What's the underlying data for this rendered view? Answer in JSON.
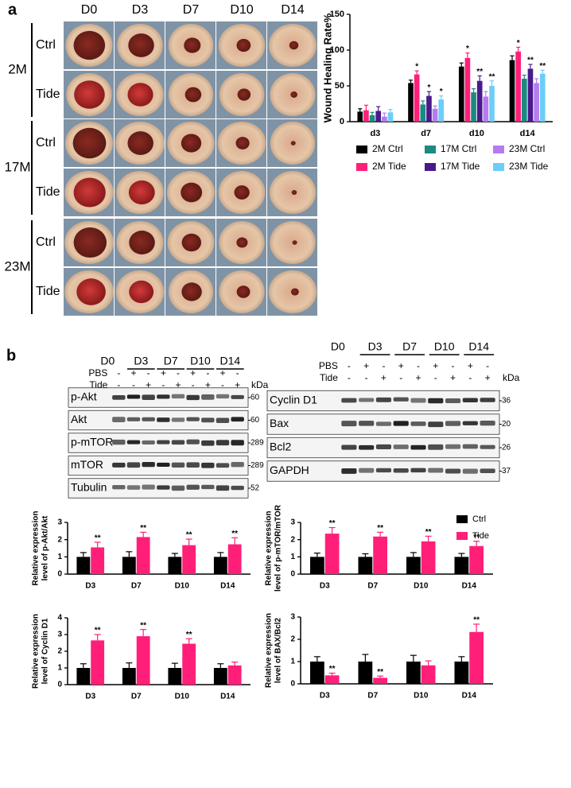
{
  "panel_a": {
    "label": "a",
    "columns": [
      "D0",
      "D3",
      "D7",
      "D10",
      "D14"
    ],
    "groups": [
      {
        "name": "2M",
        "rows": [
          "Ctrl",
          "Tide"
        ]
      },
      {
        "name": "17M",
        "rows": [
          "Ctrl",
          "Tide"
        ]
      },
      {
        "name": "23M",
        "rows": [
          "Ctrl",
          "Tide"
        ]
      }
    ]
  },
  "panel_b": {
    "label": "b",
    "blots": [
      {
        "columns": [
          "D0",
          "D3",
          "D7",
          "D10",
          "D14"
        ],
        "treatments": [
          {
            "name": "PBS",
            "signs": [
              "-",
              "+",
              "-",
              "+",
              "-",
              "+",
              "-",
              "+",
              "-"
            ]
          },
          {
            "name": "Tide",
            "signs": [
              "-",
              "-",
              "+",
              "-",
              "+",
              "-",
              "+",
              "-",
              "+"
            ]
          }
        ],
        "unit": "kDa",
        "proteins": [
          {
            "name": "p-Akt",
            "kda": "60"
          },
          {
            "name": "Akt",
            "kda": "60"
          },
          {
            "name": "p-mTOR",
            "kda": "289"
          },
          {
            "name": "mTOR",
            "kda": "289"
          },
          {
            "name": "Tubulin",
            "kda": "52"
          }
        ]
      },
      {
        "columns": [
          "D0",
          "D3",
          "D7",
          "D10",
          "D14"
        ],
        "treatments": [
          {
            "name": "PBS",
            "signs": [
              "-",
              "+",
              "-",
              "+",
              "-",
              "+",
              "-",
              "+",
              "-"
            ]
          },
          {
            "name": "Tide",
            "signs": [
              "-",
              "-",
              "+",
              "-",
              "+",
              "-",
              "+",
              "-",
              "+"
            ]
          }
        ],
        "unit": "kDa",
        "proteins": [
          {
            "name": "Cyclin D1",
            "kda": "36"
          },
          {
            "name": "Bax",
            "kda": "20"
          },
          {
            "name": "Bcl2",
            "kda": "26"
          },
          {
            "name": "GAPDH",
            "kda": "37"
          }
        ]
      }
    ]
  },
  "chart_data": [
    {
      "type": "bar",
      "y_label": [
        "Wound Healing Rate%"
      ],
      "categories": [
        "d3",
        "d7",
        "d10",
        "d14"
      ],
      "ylim": [
        0,
        150
      ],
      "yticks": [
        0,
        50,
        100,
        150
      ],
      "legend": "bottom",
      "series": [
        {
          "name": "2M Ctrl",
          "color": "#000000",
          "values": [
            14,
            54,
            77,
            86
          ],
          "errors": [
            4,
            4,
            5,
            6
          ]
        },
        {
          "name": "2M Tide",
          "color": "#ff1f78",
          "values": [
            16,
            66,
            89,
            98
          ],
          "errors": [
            7,
            5,
            7,
            6
          ],
          "annotations": [
            null,
            "*",
            "*",
            "*"
          ]
        },
        {
          "name": "17M Ctrl",
          "color": "#1b8a80",
          "values": [
            9,
            24,
            41,
            60
          ],
          "errors": [
            4,
            5,
            5,
            5
          ]
        },
        {
          "name": "17M Tide",
          "color": "#4a1a8c",
          "values": [
            15,
            36,
            57,
            74
          ],
          "errors": [
            6,
            6,
            7,
            6
          ],
          "annotations": [
            null,
            "*",
            "**",
            "**"
          ]
        },
        {
          "name": "23M Ctrl",
          "color": "#b57cf0",
          "values": [
            7,
            18,
            35,
            54
          ],
          "errors": [
            5,
            4,
            7,
            6
          ]
        },
        {
          "name": "23M Tide",
          "color": "#6ccdf8",
          "values": [
            13,
            31,
            50,
            67
          ],
          "errors": [
            4,
            5,
            7,
            5
          ],
          "annotations": [
            null,
            "*",
            "**",
            "**"
          ]
        }
      ]
    },
    {
      "type": "bar",
      "y_label": [
        "Relative expression",
        "level of p-Akt/Akt"
      ],
      "categories": [
        "D3",
        "D7",
        "D10",
        "D14"
      ],
      "ylim": [
        0,
        3
      ],
      "yticks": [
        0,
        1,
        2,
        3
      ],
      "series": [
        {
          "color": "#000000",
          "values": [
            1,
            1,
            1,
            1
          ],
          "errors": [
            0.25,
            0.3,
            0.2,
            0.25
          ]
        },
        {
          "color": "#ff1f78",
          "values": [
            1.55,
            2.15,
            1.68,
            1.73
          ],
          "errors": [
            0.3,
            0.28,
            0.35,
            0.38
          ],
          "annotations": [
            "**",
            "**",
            "**",
            "**"
          ]
        }
      ]
    },
    {
      "type": "bar",
      "y_label": [
        "Relative expression",
        "level of p-mTOR/mTOR"
      ],
      "categories": [
        "D3",
        "D7",
        "D10",
        "D14"
      ],
      "ylim": [
        0,
        3
      ],
      "yticks": [
        0,
        1,
        2,
        3
      ],
      "legend": "top-right",
      "series": [
        {
          "name": "Ctrl",
          "color": "#000000",
          "values": [
            1,
            1,
            1,
            1
          ],
          "errors": [
            0.22,
            0.18,
            0.25,
            0.2
          ]
        },
        {
          "name": "Tide",
          "color": "#ff1f78",
          "values": [
            2.35,
            2.18,
            1.9,
            1.63
          ],
          "errors": [
            0.35,
            0.25,
            0.3,
            0.28
          ],
          "annotations": [
            "**",
            "**",
            "**",
            "**"
          ]
        }
      ]
    },
    {
      "type": "bar",
      "y_label": [
        "Relative expression",
        "level of Cyclin D1"
      ],
      "categories": [
        "D3",
        "D7",
        "D10",
        "D14"
      ],
      "ylim": [
        0,
        4
      ],
      "yticks": [
        0,
        1,
        2,
        3,
        4
      ],
      "series": [
        {
          "color": "#000000",
          "values": [
            1,
            1,
            1,
            1
          ],
          "errors": [
            0.25,
            0.3,
            0.28,
            0.25
          ]
        },
        {
          "color": "#ff1f78",
          "values": [
            2.65,
            2.9,
            2.45,
            1.15
          ],
          "errors": [
            0.35,
            0.4,
            0.3,
            0.2
          ],
          "annotations": [
            "**",
            "**",
            "**",
            null
          ]
        }
      ]
    },
    {
      "type": "bar",
      "y_label": [
        "Relative expression",
        "level of BAX/Bcl2"
      ],
      "categories": [
        "D3",
        "D7",
        "D10",
        "D14"
      ],
      "ylim": [
        0,
        3
      ],
      "yticks": [
        0,
        1,
        2,
        3
      ],
      "series": [
        {
          "color": "#000000",
          "values": [
            1,
            1,
            1,
            1
          ],
          "errors": [
            0.22,
            0.32,
            0.28,
            0.22
          ]
        },
        {
          "color": "#ff1f78",
          "values": [
            0.38,
            0.27,
            0.83,
            2.33
          ],
          "errors": [
            0.1,
            0.08,
            0.2,
            0.35
          ],
          "annotations": [
            "**",
            "**",
            null,
            "**"
          ]
        }
      ]
    }
  ]
}
